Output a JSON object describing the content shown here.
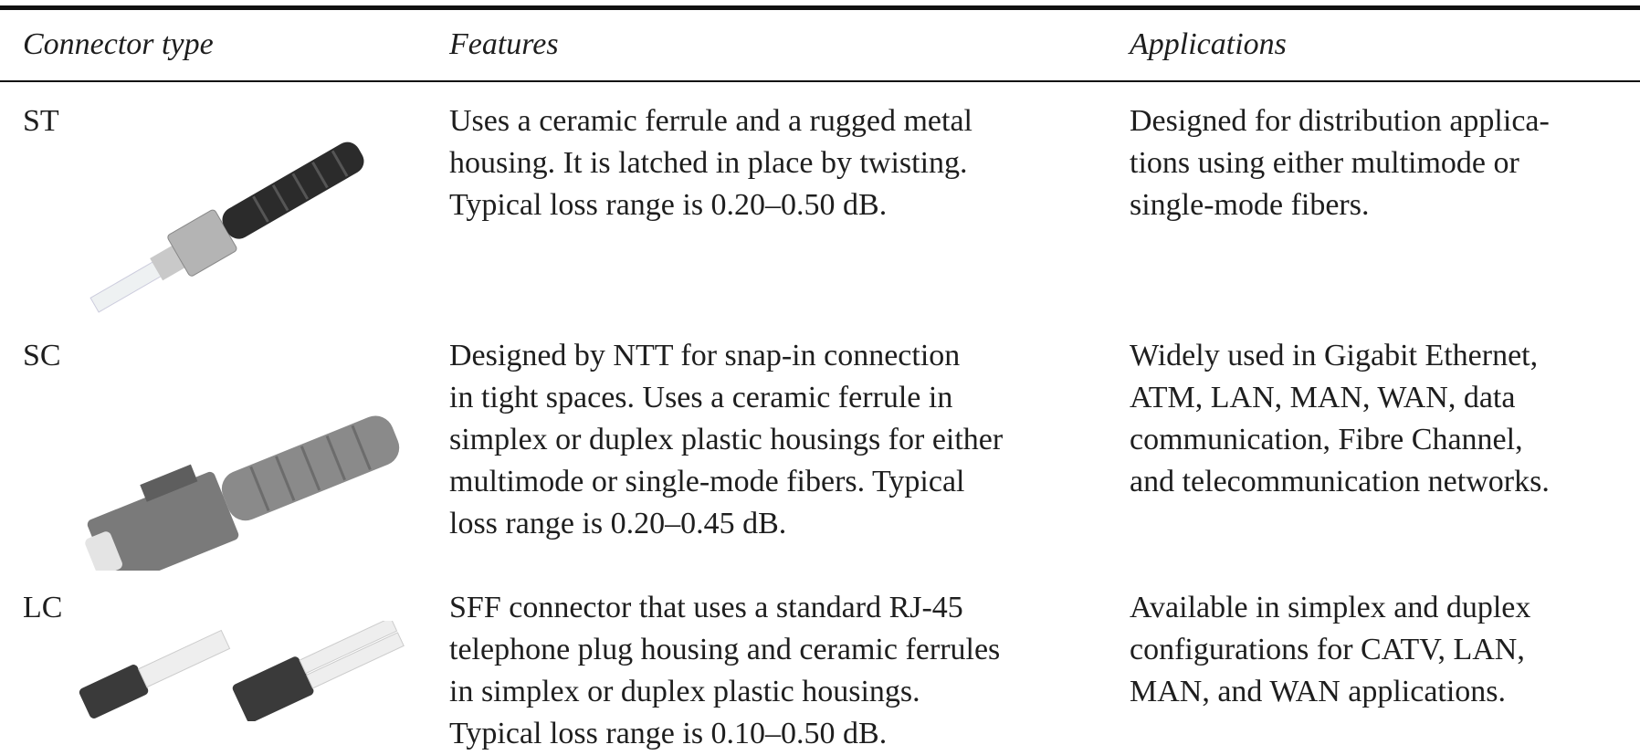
{
  "table": {
    "header": [
      "Connector type",
      "Features",
      "Applications"
    ],
    "rows": [
      {
        "type": "ST",
        "features": [
          "Uses a ceramic ferrule and a rugged metal",
          "housing. It is latched in place by twisting.",
          "Typical loss range is 0.20–0.50 dB."
        ],
        "applications": [
          "Designed for distribution applica-",
          "tions using either multimode or",
          "single-mode fibers."
        ]
      },
      {
        "type": "SC",
        "features": [
          "Designed by NTT for snap-in connection",
          "in tight spaces. Uses a ceramic ferrule in",
          "simplex or duplex plastic housings for either",
          "multimode or single-mode fibers. Typical",
          "loss range is 0.20–0.45 dB."
        ],
        "applications": [
          "Widely used in Gigabit Ethernet,",
          "ATM, LAN, MAN, WAN, data",
          "communication, Fibre Channel,",
          "and telecommunication networks."
        ]
      },
      {
        "type": "LC",
        "features": [
          "SFF connector that uses a standard RJ-45",
          "telephone plug housing and ceramic ferrules",
          "in simplex or duplex plastic housings.",
          "Typical loss range is 0.10–0.50 dB."
        ],
        "applications": [
          "Available in simplex and duplex",
          "configurations for CATV, LAN,",
          "MAN, and WAN applications."
        ]
      }
    ]
  }
}
